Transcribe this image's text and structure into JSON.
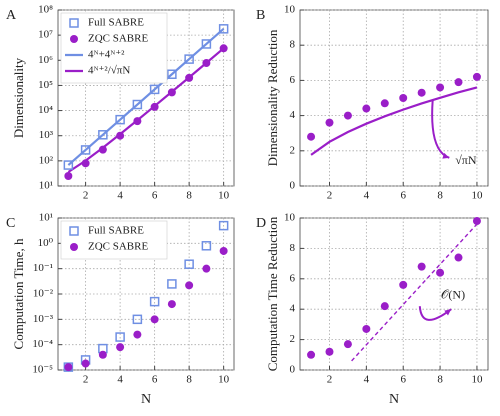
{
  "chart_data": [
    {
      "type": "scatter",
      "label": "A",
      "ylabel": "Dimensionality",
      "log": true,
      "grid": true,
      "legend": "upper left",
      "x": [
        1,
        2,
        3,
        4,
        5,
        6,
        7,
        8,
        9,
        10
      ],
      "xlim": [
        0.4,
        10.6
      ],
      "xticks": [
        2,
        4,
        6,
        8,
        10
      ],
      "ylim": [
        10,
        100000000
      ],
      "yticks": [
        {
          "value": 10,
          "label": "10¹"
        },
        {
          "value": 100,
          "label": "10²"
        },
        {
          "value": 1000,
          "label": "10³"
        },
        {
          "value": 10000,
          "label": "10⁴"
        },
        {
          "value": 100000,
          "label": "10⁵"
        },
        {
          "value": 1000000,
          "label": "10⁶"
        },
        {
          "value": 10000000,
          "label": "10⁷"
        },
        {
          "value": 100000000,
          "label": "10⁸"
        }
      ],
      "series": [
        {
          "name": "Full SABRE",
          "marker": "square",
          "color": "#6f8fe3",
          "values": [
            68,
            272,
            1088,
            4352,
            17408,
            69632,
            278528,
            1114112,
            4456448,
            17825792
          ]
        },
        {
          "name": "ZQC SABRE",
          "marker": "circle",
          "color": "#9a1ec8",
          "values": [
            25,
            80,
            280,
            1000,
            3800,
            14000,
            53000,
            200000,
            780000,
            3000000
          ]
        },
        {
          "name": "4ᴺ+4ᴺ⁺²",
          "marker": "line",
          "color": "#6f8fe3",
          "values": [
            68,
            272,
            1088,
            4352,
            17408,
            69632,
            278528,
            1114112,
            4456448,
            17825792
          ]
        },
        {
          "name": "4ᴺ⁺²/√πN",
          "marker": "line",
          "color": "#9a1ec8",
          "values": [
            36,
            102,
            333,
            1156,
            4130,
            15090,
            55900,
            209000,
            788000,
            2990000
          ]
        }
      ]
    },
    {
      "type": "scatter",
      "label": "B",
      "ylabel": "Dimensionality Reduction",
      "log": false,
      "grid": true,
      "x": [
        1,
        2,
        3,
        4,
        5,
        6,
        7,
        8,
        9,
        10
      ],
      "xlim": [
        0.4,
        10.6
      ],
      "xticks": [
        2,
        4,
        6,
        8,
        10
      ],
      "ylim": [
        0,
        10
      ],
      "yticks": [
        0,
        2,
        4,
        6,
        8,
        10
      ],
      "annotations": [
        "√πN"
      ],
      "series": [
        {
          "marker": "circle",
          "color": "#9a1ec8",
          "values": [
            2.8,
            3.6,
            4.0,
            4.4,
            4.7,
            5.0,
            5.3,
            5.6,
            5.9,
            6.2
          ]
        },
        {
          "marker": "line",
          "color": "#9a1ec8",
          "values": [
            1.77,
            2.51,
            3.07,
            3.54,
            3.96,
            4.34,
            4.69,
            5.01,
            5.32,
            5.6
          ]
        }
      ]
    },
    {
      "type": "scatter",
      "label": "C",
      "ylabel": "Computation Time, h",
      "xlabel": "N",
      "log": true,
      "grid": true,
      "legend": "upper left",
      "x": [
        1,
        2,
        3,
        4,
        5,
        6,
        7,
        8,
        9,
        10
      ],
      "xlim": [
        0.4,
        10.6
      ],
      "xticks": [
        2,
        4,
        6,
        8,
        10
      ],
      "ylim": [
        1e-05,
        10
      ],
      "yticks": [
        {
          "value": 1e-05,
          "label": "10⁻⁵"
        },
        {
          "value": 0.0001,
          "label": "10⁻⁴"
        },
        {
          "value": 0.001,
          "label": "10⁻³"
        },
        {
          "value": 0.01,
          "label": "10⁻²"
        },
        {
          "value": 0.1,
          "label": "10⁻¹"
        },
        {
          "value": 1,
          "label": "10⁰"
        },
        {
          "value": 10,
          "label": "10¹"
        }
      ],
      "series": [
        {
          "name": "Full SABRE",
          "marker": "square",
          "color": "#6f8fe3",
          "values": [
            1.3e-05,
            2.5e-05,
            7e-05,
            0.0002,
            0.001,
            0.005,
            0.025,
            0.15,
            0.8,
            5
          ]
        },
        {
          "name": "ZQC SABRE",
          "marker": "circle",
          "color": "#9a1ec8",
          "values": [
            1.3e-05,
            1.8e-05,
            4e-05,
            8e-05,
            0.00025,
            0.001,
            0.004,
            0.022,
            0.1,
            0.5
          ]
        }
      ]
    },
    {
      "type": "scatter",
      "label": "D",
      "ylabel": "Computation Time Reduction",
      "xlabel": "N",
      "log": false,
      "grid": true,
      "x": [
        1,
        2,
        3,
        4,
        5,
        6,
        7,
        8,
        9,
        10
      ],
      "xlim": [
        0.4,
        10.6
      ],
      "xticks": [
        2,
        4,
        6,
        8,
        10
      ],
      "ylim": [
        0,
        10
      ],
      "yticks": [
        0,
        2,
        4,
        6,
        8,
        10
      ],
      "annotations": [
        "𝒪(N)"
      ],
      "series": [
        {
          "marker": "circle",
          "color": "#9a1ec8",
          "values": [
            1.0,
            1.2,
            1.7,
            2.7,
            4.2,
            5.6,
            6.8,
            6.4,
            7.4,
            9.8
          ]
        },
        {
          "marker": "dashed",
          "color": "#9a1ec8",
          "x": [
            3.2,
            10
          ],
          "values": [
            0.6,
            9.6
          ]
        }
      ]
    }
  ]
}
